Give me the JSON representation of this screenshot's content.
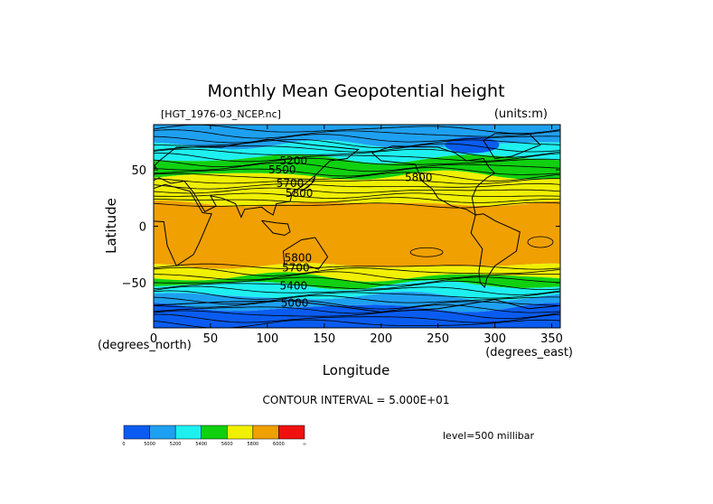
{
  "chart_data": {
    "type": "heatmap",
    "title": "Monthly Mean Geopotential height",
    "subtitle_left": "[HGT_1976-03_NCEP.nc]",
    "subtitle_right": "(units:m)",
    "xlabel": "Longitude",
    "ylabel": "Latitude",
    "x_units": "(degrees_east)",
    "y_units": "(degrees_north)",
    "xlim": [
      0,
      357.5
    ],
    "ylim": [
      -90,
      90
    ],
    "x_ticks": [
      0,
      50,
      100,
      150,
      200,
      250,
      300,
      350
    ],
    "y_ticks": [
      -50,
      0,
      50
    ],
    "contour_interval": "CONTOUR INTERVAL = 5.000E+01",
    "level": "level=500 millibar",
    "colorbar": {
      "labels": [
        "0",
        "5000",
        "5200",
        "5400",
        "5600",
        "5800",
        "6000",
        "∞"
      ],
      "colors": [
        "#0a5cf0",
        "#1ea0f0",
        "#1ef0f0",
        "#10d010",
        "#f0f000",
        "#f0a000",
        "#f01010"
      ]
    },
    "contour_labels": [
      {
        "text": "5200",
        "lon": 123,
        "lat": 55
      },
      {
        "text": "5500",
        "lon": 113,
        "lat": 47
      },
      {
        "text": "5700",
        "lon": 120,
        "lat": 35
      },
      {
        "text": "5800",
        "lon": 128,
        "lat": 26
      },
      {
        "text": "5800",
        "lon": 233,
        "lat": 40
      },
      {
        "text": "5800",
        "lon": 127,
        "lat": -31
      },
      {
        "text": "5700",
        "lon": 125,
        "lat": -40
      },
      {
        "text": "5400",
        "lon": 123,
        "lat": -56
      },
      {
        "text": "5000",
        "lon": 124,
        "lat": -71
      }
    ],
    "zonal_bands": [
      {
        "lat_top": 90,
        "lat_bottom": 82,
        "color": "#1ea0f0"
      },
      {
        "lat_top": 82,
        "lat_bottom": 72,
        "color": "#1ea0f0"
      },
      {
        "lat_top": 72,
        "lat_bottom": 60,
        "color": "#1ef0f0"
      },
      {
        "lat_top": 60,
        "lat_bottom": 45,
        "color": "#10d010"
      },
      {
        "lat_top": 45,
        "lat_bottom": 33,
        "color": "#f0f000"
      },
      {
        "lat_top": 33,
        "lat_bottom": 20,
        "color": "#f0f000"
      },
      {
        "lat_top": 20,
        "lat_bottom": -35,
        "color": "#f0a000"
      },
      {
        "lat_top": -35,
        "lat_bottom": -45,
        "color": "#f0f000"
      },
      {
        "lat_top": -45,
        "lat_bottom": -52,
        "color": "#10d010"
      },
      {
        "lat_top": -52,
        "lat_bottom": -62,
        "color": "#1ef0f0"
      },
      {
        "lat_top": -62,
        "lat_bottom": -72,
        "color": "#1ea0f0"
      },
      {
        "lat_top": -72,
        "lat_bottom": -90,
        "color": "#0a5cf0"
      }
    ],
    "deep_low": {
      "lon": 280,
      "lat": 72,
      "color": "#0a5cf0"
    },
    "grid": false
  }
}
